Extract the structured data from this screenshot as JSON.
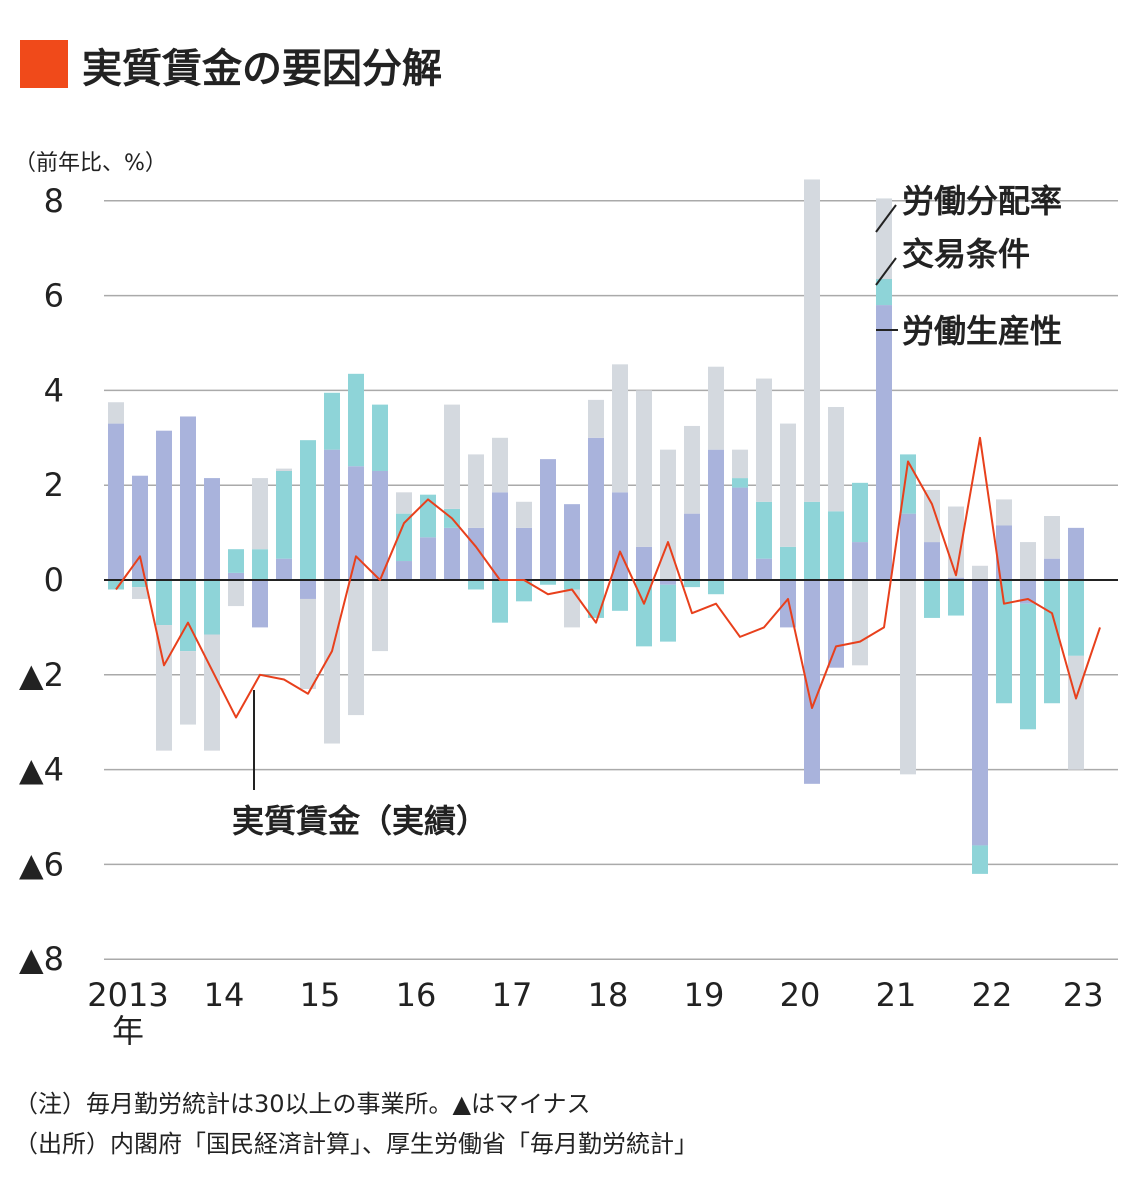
{
  "title": "実質賃金の要因分解",
  "unit_label": "（前年比、%）",
  "notes": [
    "（注）毎月勤労統計は30以上の事業所。▲はマイナス",
    "（出所）内閣府「国民経済計算」、厚生労働省「毎月勤労統計」"
  ],
  "colors": {
    "accent": "#f04a1a",
    "labor_productivity": "#a9b3dc",
    "terms_of_trade": "#8ed4d8",
    "labor_share": "#d4d9df",
    "real_wage_line": "#e8401c",
    "grid": "#aaaaaa",
    "zero_line": "#222222"
  },
  "chart_data": {
    "type": "bar",
    "stacked": true,
    "ylim": [
      -8,
      8
    ],
    "yticks": [
      8,
      6,
      4,
      2,
      0,
      -2,
      -4,
      -6,
      -8
    ],
    "ytick_labels": [
      "8",
      "6",
      "4",
      "2",
      "0",
      "▲2",
      "▲4",
      "▲6",
      "▲8"
    ],
    "grid": true,
    "legend_position": "top-right",
    "xtick_labels": [
      {
        "index": 0.5,
        "label": "2013",
        "sublabel": "年"
      },
      {
        "index": 4.5,
        "label": "14"
      },
      {
        "index": 8.5,
        "label": "15"
      },
      {
        "index": 12.5,
        "label": "16"
      },
      {
        "index": 16.5,
        "label": "17"
      },
      {
        "index": 20.5,
        "label": "18"
      },
      {
        "index": 24.5,
        "label": "19"
      },
      {
        "index": 28.5,
        "label": "20"
      },
      {
        "index": 32.5,
        "label": "21"
      },
      {
        "index": 36.5,
        "label": "22"
      },
      {
        "index": 40.3,
        "label": "23"
      }
    ],
    "series": [
      {
        "name": "労働生産性",
        "type": "bar",
        "values": [
          3.3,
          2.2,
          3.15,
          3.45,
          2.15,
          0.15,
          -1.0,
          0.45,
          -0.4,
          2.75,
          2.4,
          2.3,
          0.4,
          0.9,
          1.1,
          1.1,
          1.85,
          1.1,
          2.55,
          1.6,
          3.0,
          1.85,
          0.7,
          -0.1,
          1.4,
          2.75,
          1.95,
          0.45,
          -1.0,
          -4.3,
          -1.85,
          0.8,
          5.8,
          1.4,
          0.8,
          0.05,
          -5.6,
          1.15,
          -0.5,
          0.45,
          1.1
        ]
      },
      {
        "name": "交易条件",
        "type": "bar",
        "values": [
          -0.2,
          -0.15,
          -0.95,
          -1.5,
          -1.15,
          0.5,
          0.65,
          1.85,
          2.95,
          1.2,
          1.95,
          1.4,
          1.0,
          0.9,
          0.4,
          -0.2,
          -0.9,
          -0.45,
          -0.1,
          -0.2,
          -0.8,
          -0.65,
          -1.4,
          -1.2,
          -0.15,
          -0.3,
          0.2,
          1.2,
          0.7,
          1.65,
          1.45,
          1.25,
          0.55,
          1.25,
          -0.8,
          -0.75,
          -0.6,
          -2.6,
          -2.65,
          -2.6,
          -1.6
        ]
      },
      {
        "name": "労働分配率",
        "type": "bar",
        "values": [
          0.45,
          -0.25,
          -2.65,
          -1.55,
          -2.45,
          -0.55,
          1.5,
          0.05,
          -1.9,
          -3.45,
          -2.85,
          -1.5,
          0.45,
          0.0,
          2.2,
          1.55,
          1.15,
          0.55,
          0.0,
          -0.8,
          0.8,
          2.7,
          3.3,
          2.75,
          1.85,
          1.75,
          0.6,
          2.6,
          2.6,
          6.8,
          2.2,
          -1.8,
          1.7,
          -4.1,
          1.1,
          1.5,
          0.3,
          0.55,
          0.8,
          0.9,
          -2.4
        ]
      },
      {
        "name": "実質賃金（実績）",
        "type": "line",
        "values": [
          -0.2,
          0.5,
          -1.8,
          -0.9,
          -1.9,
          -2.9,
          -2.0,
          -2.1,
          -2.4,
          -1.5,
          0.5,
          0.0,
          1.2,
          1.7,
          1.3,
          0.7,
          0.0,
          0.0,
          -0.3,
          -0.2,
          -0.9,
          0.6,
          -0.5,
          0.8,
          -0.7,
          -0.5,
          -1.2,
          -1.0,
          -0.4,
          -2.7,
          -1.4,
          -1.3,
          -1.0,
          2.5,
          1.6,
          0.1,
          3.0,
          -0.5,
          -0.4,
          -0.7,
          -2.5,
          -1.0
        ]
      }
    ],
    "legend_labels": [
      "労働分配率",
      "交易条件",
      "労働生産性"
    ],
    "annotation": "実質賃金（実績）"
  }
}
